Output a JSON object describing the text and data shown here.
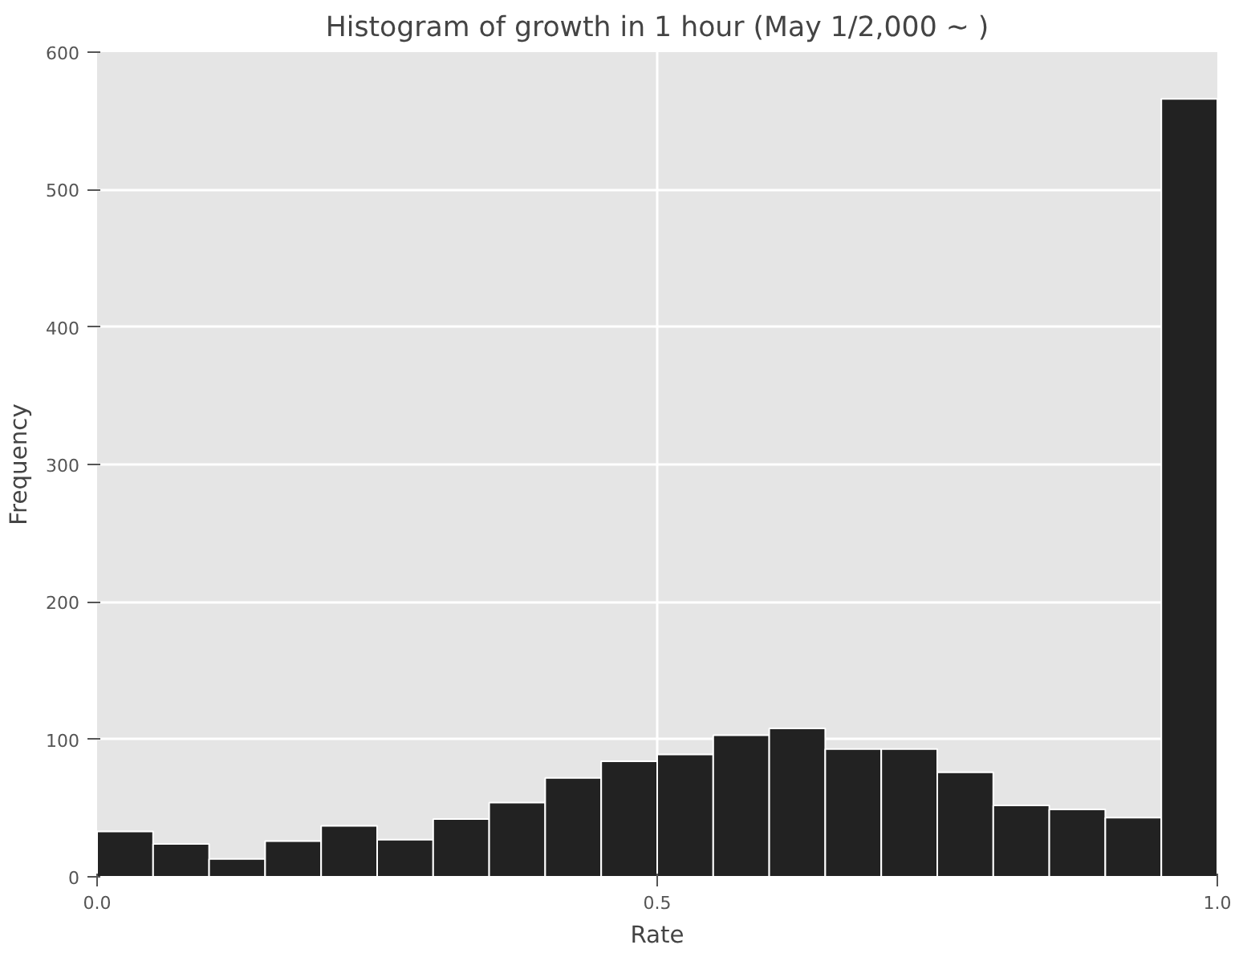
{
  "chart_data": {
    "type": "histogram",
    "title": "Histogram of growth in 1 hour (May 1/2,000 ~ )",
    "xlabel": "Rate",
    "ylabel": "Frequency",
    "bins": [
      0.0,
      0.05,
      0.1,
      0.15,
      0.2,
      0.25,
      0.3,
      0.35,
      0.4,
      0.45,
      0.5,
      0.55,
      0.6,
      0.65,
      0.7,
      0.75,
      0.8,
      0.85,
      0.9,
      0.95,
      1.0
    ],
    "values": [
      33,
      24,
      13,
      26,
      37,
      27,
      42,
      54,
      72,
      84,
      89,
      103,
      108,
      93,
      93,
      76,
      52,
      49,
      43,
      566
    ],
    "color": "#222222",
    "xlim": [
      0.0,
      1.0
    ],
    "ylim": [
      0,
      600
    ],
    "xticks": [
      {
        "value": 0.0,
        "label": "0.0"
      },
      {
        "value": 0.5,
        "label": "0.5"
      },
      {
        "value": 1.0,
        "label": "1.0"
      }
    ],
    "yticks": [
      0,
      100,
      200,
      300,
      400,
      500,
      600
    ],
    "grid": true
  }
}
